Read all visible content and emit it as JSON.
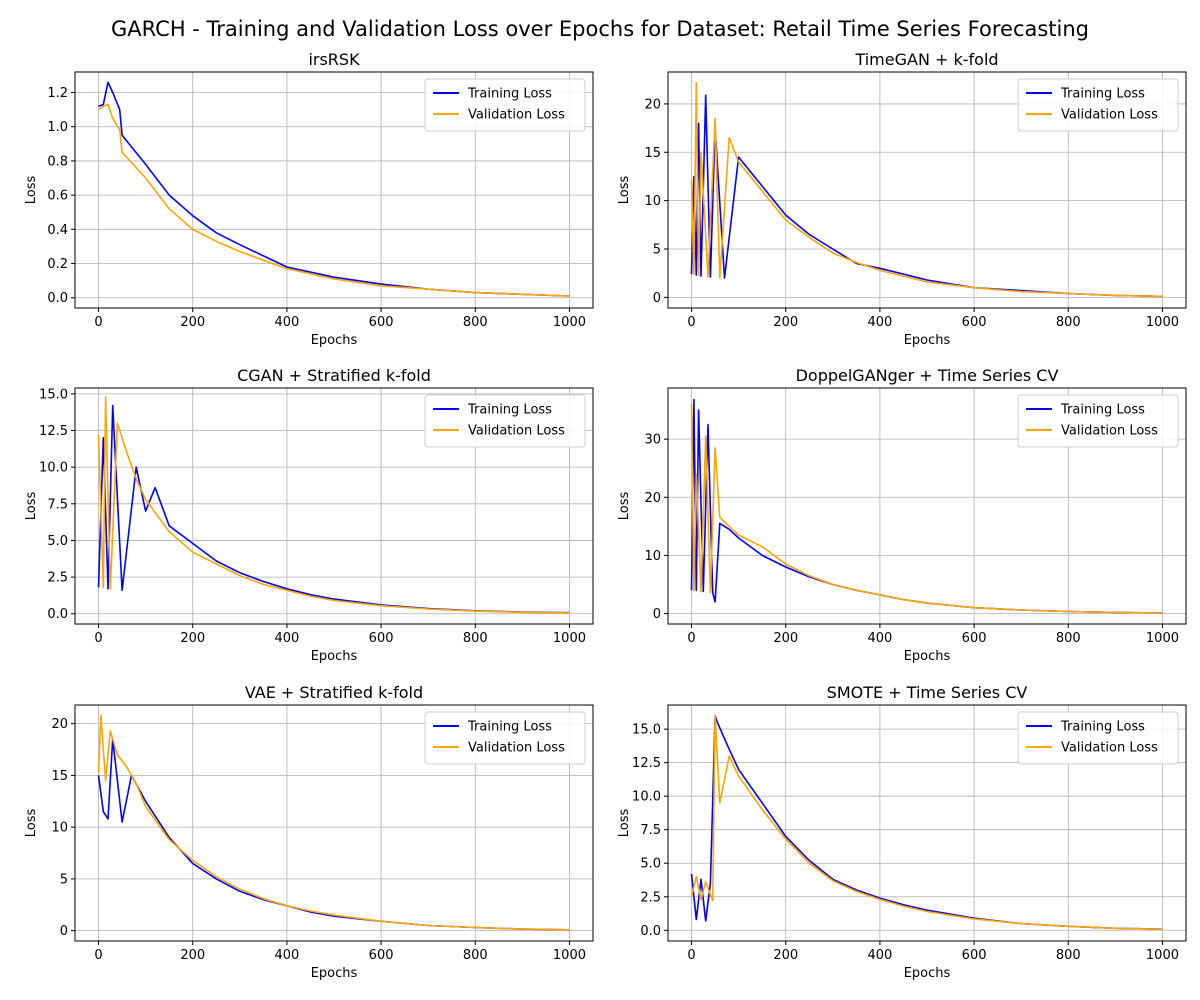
{
  "figure": {
    "suptitle": "GARCH - Training and Validation Loss over Epochs for Dataset: Retail Time Series Forecasting",
    "colors": {
      "training": "#0000ff",
      "validation": "#ffa500",
      "grid": "#b0b0b0",
      "axes": "#000000"
    }
  },
  "chart_data": [
    {
      "type": "line",
      "title": "irsRSK",
      "xlabel": "Epochs",
      "ylabel": "Loss",
      "xlim": [
        -50,
        1050
      ],
      "ylim": [
        -0.06,
        1.32
      ],
      "xticks": [
        0,
        200,
        400,
        600,
        800,
        1000
      ],
      "yticks": [
        0.0,
        0.2,
        0.4,
        0.6,
        0.8,
        1.0,
        1.2
      ],
      "ytick_labels": [
        "0.0",
        "0.2",
        "0.4",
        "0.6",
        "0.8",
        "1.0",
        "1.2"
      ],
      "grid": true,
      "legend": "upper right",
      "series": [
        {
          "name": "Training Loss",
          "color": "#0000ff",
          "x": [
            0,
            10,
            20,
            30,
            45,
            50,
            100,
            150,
            200,
            250,
            300,
            400,
            500,
            600,
            700,
            800,
            900,
            1000
          ],
          "y": [
            1.12,
            1.13,
            1.26,
            1.2,
            1.1,
            0.95,
            0.78,
            0.6,
            0.48,
            0.38,
            0.31,
            0.18,
            0.12,
            0.08,
            0.05,
            0.03,
            0.02,
            0.01
          ]
        },
        {
          "name": "Validation Loss",
          "color": "#ffa500",
          "x": [
            0,
            10,
            20,
            30,
            45,
            50,
            100,
            150,
            200,
            250,
            300,
            400,
            500,
            600,
            700,
            800,
            900,
            1000
          ],
          "y": [
            1.1,
            1.12,
            1.13,
            1.05,
            0.98,
            0.85,
            0.7,
            0.52,
            0.4,
            0.33,
            0.27,
            0.17,
            0.11,
            0.07,
            0.05,
            0.03,
            0.02,
            0.01
          ]
        }
      ]
    },
    {
      "type": "line",
      "title": "TimeGAN + k-fold",
      "xlabel": "Epochs",
      "ylabel": "Loss",
      "xlim": [
        -50,
        1050
      ],
      "ylim": [
        -1.1,
        23.3
      ],
      "xticks": [
        0,
        200,
        400,
        600,
        800,
        1000
      ],
      "yticks": [
        0,
        5,
        10,
        15,
        20
      ],
      "ytick_labels": [
        "0",
        "5",
        "10",
        "15",
        "20"
      ],
      "grid": true,
      "legend": "upper right",
      "series": [
        {
          "name": "Training Loss",
          "color": "#0000ff",
          "x": [
            0,
            5,
            10,
            15,
            20,
            30,
            40,
            50,
            70,
            100,
            150,
            200,
            250,
            300,
            350,
            400,
            450,
            500,
            600,
            700,
            800,
            900,
            1000
          ],
          "y": [
            2.4,
            12.5,
            2.3,
            18.0,
            2.2,
            20.9,
            2.1,
            17.5,
            2.0,
            14.5,
            11.5,
            8.5,
            6.5,
            5.0,
            3.5,
            3.0,
            2.4,
            1.8,
            1.0,
            0.7,
            0.4,
            0.2,
            0.1
          ]
        },
        {
          "name": "Validation Loss",
          "color": "#ffa500",
          "x": [
            0,
            5,
            10,
            15,
            20,
            35,
            50,
            60,
            80,
            100,
            150,
            200,
            250,
            300,
            350,
            400,
            450,
            500,
            600,
            700,
            800,
            900,
            1000
          ],
          "y": [
            12.2,
            2.4,
            22.2,
            2.3,
            15.0,
            2.1,
            18.5,
            2.0,
            16.5,
            14.0,
            11.0,
            8.0,
            6.2,
            4.6,
            3.6,
            2.8,
            2.2,
            1.6,
            1.0,
            0.6,
            0.4,
            0.2,
            0.1
          ]
        }
      ]
    },
    {
      "type": "line",
      "title": "CGAN + Stratified k-fold",
      "xlabel": "Epochs",
      "ylabel": "Loss",
      "xlim": [
        -50,
        1050
      ],
      "ylim": [
        -0.7,
        15.4
      ],
      "xticks": [
        0,
        200,
        400,
        600,
        800,
        1000
      ],
      "yticks": [
        0.0,
        2.5,
        5.0,
        7.5,
        10.0,
        12.5,
        15.0
      ],
      "ytick_labels": [
        "0.0",
        "2.5",
        "5.0",
        "7.5",
        "10.0",
        "12.5",
        "15.0"
      ],
      "grid": true,
      "legend": "upper right",
      "series": [
        {
          "name": "Training Loss",
          "color": "#0000ff",
          "x": [
            0,
            10,
            20,
            30,
            50,
            80,
            100,
            120,
            150,
            200,
            250,
            300,
            350,
            400,
            450,
            500,
            600,
            700,
            800,
            900,
            1000
          ],
          "y": [
            1.8,
            12.0,
            1.7,
            14.2,
            1.6,
            10.0,
            7.0,
            8.6,
            6.0,
            4.8,
            3.6,
            2.8,
            2.2,
            1.7,
            1.3,
            1.0,
            0.6,
            0.35,
            0.2,
            0.12,
            0.07
          ]
        },
        {
          "name": "Validation Loss",
          "color": "#ffa500",
          "x": [
            0,
            10,
            15,
            25,
            40,
            60,
            80,
            100,
            150,
            200,
            250,
            300,
            350,
            400,
            450,
            500,
            600,
            700,
            800,
            900,
            1000
          ],
          "y": [
            12.2,
            1.8,
            14.8,
            1.7,
            13.0,
            11.0,
            9.2,
            7.8,
            5.6,
            4.2,
            3.4,
            2.6,
            2.0,
            1.6,
            1.2,
            0.9,
            0.55,
            0.32,
            0.18,
            0.1,
            0.06
          ]
        }
      ]
    },
    {
      "type": "line",
      "title": "DoppelGANger + Time Series CV",
      "xlabel": "Epochs",
      "ylabel": "Loss",
      "xlim": [
        -50,
        1050
      ],
      "ylim": [
        -1.8,
        38.8
      ],
      "xticks": [
        0,
        200,
        400,
        600,
        800,
        1000
      ],
      "yticks": [
        0,
        10,
        20,
        30
      ],
      "ytick_labels": [
        "0",
        "10",
        "20",
        "30"
      ],
      "grid": true,
      "legend": "upper right",
      "series": [
        {
          "name": "Training Loss",
          "color": "#0000ff",
          "x": [
            0,
            5,
            10,
            15,
            25,
            35,
            45,
            50,
            60,
            80,
            100,
            150,
            200,
            250,
            300,
            350,
            400,
            450,
            500,
            600,
            700,
            800,
            900,
            1000
          ],
          "y": [
            4.0,
            36.8,
            4.0,
            35.0,
            3.8,
            32.5,
            3.6,
            2.0,
            15.5,
            14.5,
            13.0,
            10.0,
            8.0,
            6.3,
            5.0,
            4.0,
            3.2,
            2.4,
            1.8,
            1.0,
            0.6,
            0.35,
            0.2,
            0.1
          ]
        },
        {
          "name": "Validation Loss",
          "color": "#ffa500",
          "x": [
            0,
            5,
            10,
            20,
            30,
            40,
            50,
            60,
            80,
            100,
            150,
            200,
            250,
            300,
            350,
            400,
            450,
            500,
            600,
            700,
            800,
            900,
            1000
          ],
          "y": [
            36.0,
            4.0,
            24.0,
            3.8,
            30.5,
            3.6,
            28.5,
            16.5,
            15.0,
            13.5,
            11.5,
            8.5,
            6.5,
            5.0,
            4.0,
            3.2,
            2.4,
            1.8,
            1.0,
            0.6,
            0.35,
            0.2,
            0.1
          ]
        }
      ]
    },
    {
      "type": "line",
      "title": "VAE + Stratified k-fold",
      "xlabel": "Epochs",
      "ylabel": "Loss",
      "xlim": [
        -50,
        1050
      ],
      "ylim": [
        -1.0,
        21.8
      ],
      "xticks": [
        0,
        200,
        400,
        600,
        800,
        1000
      ],
      "yticks": [
        0,
        5,
        10,
        15,
        20
      ],
      "ytick_labels": [
        "0",
        "5",
        "10",
        "15",
        "20"
      ],
      "grid": true,
      "legend": "upper right",
      "series": [
        {
          "name": "Training Loss",
          "color": "#0000ff",
          "x": [
            0,
            10,
            20,
            30,
            50,
            70,
            100,
            150,
            200,
            250,
            300,
            350,
            400,
            450,
            500,
            600,
            700,
            800,
            900,
            1000
          ],
          "y": [
            15.0,
            11.5,
            10.8,
            18.5,
            10.5,
            15.0,
            12.5,
            9.0,
            6.5,
            5.0,
            3.8,
            3.0,
            2.4,
            1.8,
            1.4,
            0.9,
            0.5,
            0.3,
            0.15,
            0.08
          ]
        },
        {
          "name": "Validation Loss",
          "color": "#ffa500",
          "x": [
            0,
            5,
            15,
            25,
            40,
            60,
            80,
            100,
            150,
            200,
            250,
            300,
            350,
            400,
            450,
            500,
            600,
            700,
            800,
            900,
            1000
          ],
          "y": [
            15.2,
            20.8,
            14.5,
            19.3,
            17.0,
            15.8,
            14.2,
            12.0,
            8.8,
            6.8,
            5.2,
            4.0,
            3.1,
            2.4,
            1.9,
            1.5,
            0.9,
            0.5,
            0.3,
            0.15,
            0.08
          ]
        }
      ]
    },
    {
      "type": "line",
      "title": "SMOTE + Time Series CV",
      "xlabel": "Epochs",
      "ylabel": "Loss",
      "xlim": [
        -50,
        1050
      ],
      "ylim": [
        -0.8,
        16.8
      ],
      "xticks": [
        0,
        200,
        400,
        600,
        800,
        1000
      ],
      "yticks": [
        0.0,
        2.5,
        5.0,
        7.5,
        10.0,
        12.5,
        15.0
      ],
      "ytick_labels": [
        "0.0",
        "2.5",
        "5.0",
        "7.5",
        "10.0",
        "12.5",
        "15.0"
      ],
      "grid": true,
      "legend": "upper right",
      "series": [
        {
          "name": "Training Loss",
          "color": "#0000ff",
          "x": [
            0,
            10,
            20,
            30,
            40,
            50,
            55,
            80,
            100,
            150,
            200,
            250,
            300,
            350,
            400,
            450,
            500,
            600,
            700,
            800,
            900,
            1000
          ],
          "y": [
            4.2,
            0.8,
            3.8,
            0.7,
            3.5,
            16.0,
            15.5,
            13.5,
            12.0,
            9.5,
            7.0,
            5.2,
            3.8,
            3.0,
            2.4,
            1.9,
            1.5,
            0.9,
            0.5,
            0.3,
            0.15,
            0.08
          ]
        },
        {
          "name": "Validation Loss",
          "color": "#ffa500",
          "x": [
            0,
            10,
            20,
            30,
            45,
            50,
            60,
            80,
            100,
            150,
            200,
            250,
            300,
            350,
            400,
            450,
            500,
            600,
            700,
            800,
            900,
            1000
          ],
          "y": [
            2.5,
            4.0,
            2.3,
            3.6,
            2.2,
            16.0,
            9.5,
            13.0,
            11.5,
            9.0,
            6.8,
            5.0,
            3.7,
            2.9,
            2.3,
            1.8,
            1.4,
            0.85,
            0.5,
            0.3,
            0.15,
            0.08
          ]
        }
      ]
    }
  ]
}
